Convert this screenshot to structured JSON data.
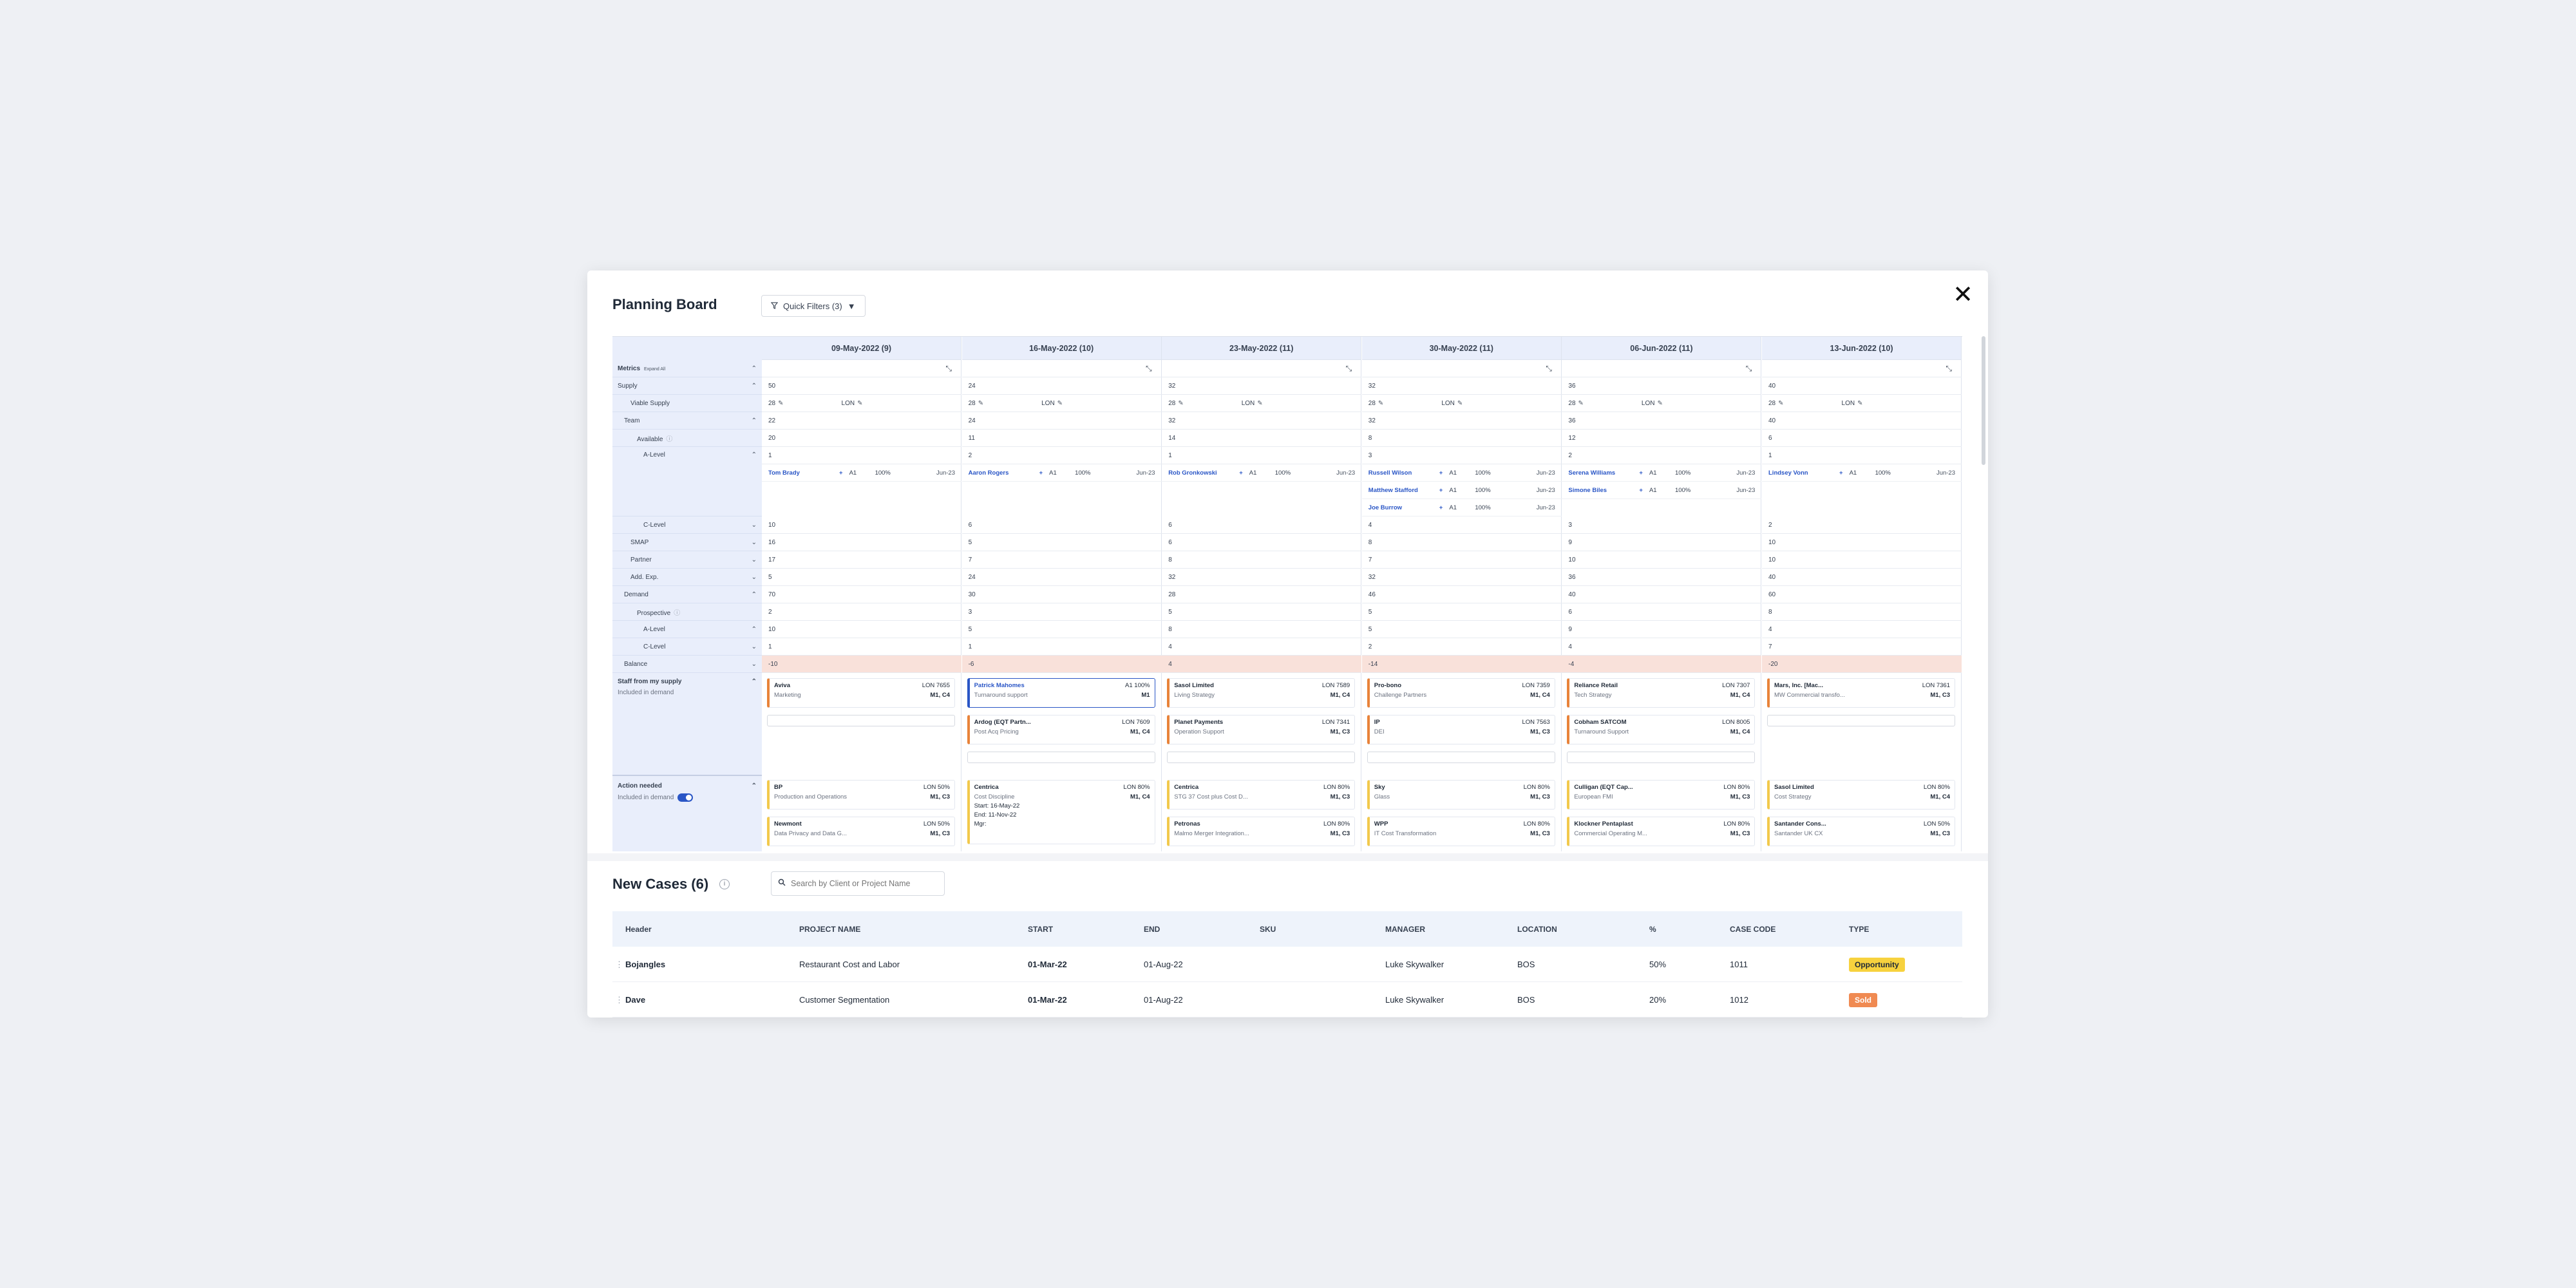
{
  "header": {
    "title": "Planning Board",
    "quick_filters": "Quick Filters (3)"
  },
  "weeks": [
    "09-May-2022 (9)",
    "16-May-2022 (10)",
    "23-May-2022 (11)",
    "30-May-2022 (11)",
    "06-Jun-2022 (11)",
    "13-Jun-2022 (10)"
  ],
  "sidebar": {
    "metrics": "Metrics",
    "expand_all": "Expand All",
    "supply": "Supply",
    "viable_supply": "Viable Supply",
    "team": "Team",
    "available": "Available",
    "a_level": "A-Level",
    "c_level": "C-Level",
    "smap": "SMAP",
    "partner": "Partner",
    "add_exp": "Add. Exp.",
    "demand": "Demand",
    "prospective": "Prospective",
    "a_level2": "A-Level",
    "c_level2": "C-Level",
    "balance": "Balance",
    "staff": "Staff from my supply",
    "staff_sub": "Included in demand",
    "action": "Action needed",
    "action_sub": "Included in demand"
  },
  "rows": {
    "supply": [
      "50",
      "24",
      "32",
      "32",
      "36",
      "40"
    ],
    "viable_count": [
      "28",
      "28",
      "28",
      "28",
      "28",
      "28"
    ],
    "viable_loc": [
      "LON",
      "LON",
      "LON",
      "LON",
      "LON",
      "LON"
    ],
    "team": [
      "22",
      "24",
      "32",
      "32",
      "36",
      "40"
    ],
    "available": [
      "20",
      "11",
      "14",
      "8",
      "12",
      "6"
    ],
    "alevel": [
      "1",
      "2",
      "1",
      "3",
      "2",
      "1"
    ],
    "clevel": [
      "10",
      "6",
      "6",
      "4",
      "3",
      "2"
    ],
    "smap": [
      "16",
      "5",
      "6",
      "8",
      "9",
      "10"
    ],
    "partner": [
      "17",
      "7",
      "8",
      "7",
      "10",
      "10"
    ],
    "addexp": [
      "5",
      "24",
      "32",
      "32",
      "36",
      "40"
    ],
    "demand": [
      "70",
      "30",
      "28",
      "46",
      "40",
      "60"
    ],
    "prospective": [
      "2",
      "3",
      "5",
      "5",
      "6",
      "8"
    ],
    "alevel2": [
      "10",
      "5",
      "8",
      "5",
      "9",
      "4"
    ],
    "clevel2": [
      "1",
      "1",
      "4",
      "2",
      "4",
      "7"
    ],
    "balance": [
      "-10",
      "-6",
      "4",
      "-14",
      "-4",
      "-20"
    ]
  },
  "people": [
    [
      {
        "name": "Tom Brady",
        "lv": "A1",
        "pc": "100%",
        "dt": "Jun-23"
      }
    ],
    [
      {
        "name": "Aaron Rogers",
        "lv": "A1",
        "pc": "100%",
        "dt": "Jun-23"
      }
    ],
    [
      {
        "name": "Rob Gronkowski",
        "lv": "A1",
        "pc": "100%",
        "dt": "Jun-23"
      }
    ],
    [
      {
        "name": "Russell Wilson",
        "lv": "A1",
        "pc": "100%",
        "dt": "Jun-23"
      },
      {
        "name": "Matthew Stafford",
        "lv": "A1",
        "pc": "100%",
        "dt": "Jun-23"
      },
      {
        "name": "Joe Burrow",
        "lv": "A1",
        "pc": "100%",
        "dt": "Jun-23"
      }
    ],
    [
      {
        "name": "Serena Williams",
        "lv": "A1",
        "pc": "100%",
        "dt": "Jun-23"
      },
      {
        "name": "Simone Biles",
        "lv": "A1",
        "pc": "100%",
        "dt": "Jun-23"
      }
    ],
    [
      {
        "name": "Lindsey Vonn",
        "lv": "A1",
        "pc": "100%",
        "dt": "Jun-23"
      }
    ]
  ],
  "staff_cards": [
    [
      {
        "c": "Aviva",
        "l": "LON",
        "n": "7655",
        "p": "Marketing",
        "m": "M1, C4"
      }
    ],
    [
      {
        "c": "Patrick Mahomes",
        "l": "A1",
        "n": "100%",
        "p": "Turnaround support",
        "m": "M1"
      },
      {
        "c": "Ardog (EQT Partn...",
        "l": "LON",
        "n": "7609",
        "p": "Post Acq Pricing",
        "m": "M1, C4"
      }
    ],
    [
      {
        "c": "Sasol Limited",
        "l": "LON",
        "n": "7589",
        "p": "Living Strategy",
        "m": "M1, C4"
      },
      {
        "c": "Planet Payments",
        "l": "LON",
        "n": "7341",
        "p": "Operation Support",
        "m": "M1, C3"
      }
    ],
    [
      {
        "c": "Pro-bono",
        "l": "LON",
        "n": "7359",
        "p": "Challenge Partners",
        "m": "M1, C4"
      },
      {
        "c": "IP",
        "l": "LON",
        "n": "7563",
        "p": "DEI",
        "m": "M1, C3"
      }
    ],
    [
      {
        "c": "Reliance Retail",
        "l": "LON",
        "n": "7307",
        "p": "Tech Strategy",
        "m": "M1, C4"
      },
      {
        "c": "Cobham SATCOM",
        "l": "LON",
        "n": "8005",
        "p": "Turnaround Support",
        "m": "M1, C4"
      }
    ],
    [
      {
        "c": "Mars, Inc. [Mac...",
        "l": "LON",
        "n": "7361",
        "p": "MW Commercial transfo...",
        "m": "M1, C3"
      }
    ]
  ],
  "action_cards": [
    [
      {
        "c": "BP",
        "l": "LON",
        "n": "50%",
        "p": "Production and Operations",
        "m": "M1, C3"
      },
      {
        "c": "Newmont",
        "l": "LON",
        "n": "50%",
        "p": "Data Privacy and Data G...",
        "m": "M1, C3"
      }
    ],
    [
      {
        "c": "Centrica",
        "l": "LON",
        "n": "80%",
        "p": "Cost Discipline",
        "m": "M1, C4"
      }
    ],
    [
      {
        "c": "Centrica",
        "l": "LON",
        "n": "80%",
        "p": "STG 37 Cost plus Cost D...",
        "m": "M1, C3"
      },
      {
        "c": "Petronas",
        "l": "LON",
        "n": "80%",
        "p": "Malmo Merger Integration...",
        "m": "M1, C3"
      }
    ],
    [
      {
        "c": "Sky",
        "l": "LON",
        "n": "80%",
        "p": "Glass",
        "m": "M1, C3"
      },
      {
        "c": "WPP",
        "l": "LON",
        "n": "80%",
        "p": "IT Cost Transformation",
        "m": "M1, C3"
      }
    ],
    [
      {
        "c": "Culligan (EQT Cap...",
        "l": "LON",
        "n": "80%",
        "p": "European FMI",
        "m": "M1, C3"
      },
      {
        "c": "Klockner Pentaplast",
        "l": "LON",
        "n": "80%",
        "p": "Commercial Operating M...",
        "m": "M1, C3"
      }
    ],
    [
      {
        "c": "Sasol Limited",
        "l": "LON",
        "n": "80%",
        "p": "Cost Strategy",
        "m": "M1, C4"
      },
      {
        "c": "Santander Cons...",
        "l": "LON",
        "n": "50%",
        "p": "Santander UK CX",
        "m": "M1, C3"
      }
    ]
  ],
  "centrica_extra": {
    "start": "Start: 16-May-22",
    "end": "End: 11-Nov-22",
    "mgr": "Mgr:"
  },
  "new_cases": {
    "title": "New Cases (6)",
    "search_placeholder": "Search by Client or Project Name",
    "columns": [
      "Header",
      "PROJECT NAME",
      "START",
      "END",
      "SKU",
      "MANAGER",
      "LOCATION",
      "%",
      "CASE CODE",
      "TYPE"
    ],
    "rows": [
      {
        "header": "Bojangles",
        "project": "Restaurant Cost and Labor",
        "start": "01-Mar-22",
        "end": "01-Aug-22",
        "sku": "",
        "manager": "Luke Skywalker",
        "location": "BOS",
        "pct": "50%",
        "code": "1011",
        "type": "Opportunity",
        "type_color": "#f7d23e",
        "type_text": "#1f2937"
      },
      {
        "header": "Dave",
        "project": "Customer Segmentation",
        "start": "01-Mar-22",
        "end": "01-Aug-22",
        "sku": "",
        "manager": "Luke Skywalker",
        "location": "BOS",
        "pct": "20%",
        "code": "1012",
        "type": "Sold",
        "type_color": "#f08a52",
        "type_text": "#ffffff"
      }
    ]
  }
}
